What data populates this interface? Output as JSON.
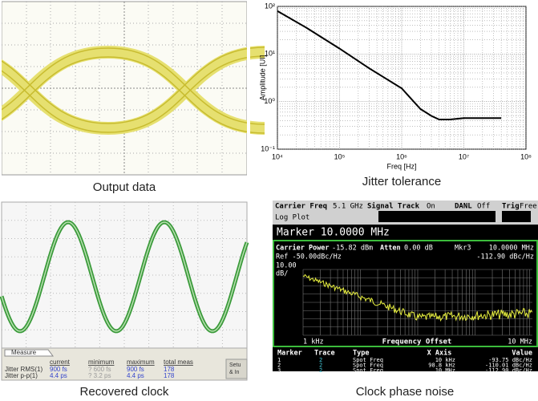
{
  "output_data": {
    "caption": "Output data"
  },
  "chart_data": [
    {
      "type": "line",
      "caption": "Jitter tolerance",
      "xlabel": "Freq [Hz]",
      "ylabel": "Amplitude [UI]",
      "log_x": true,
      "log_y": true,
      "grid": true,
      "color": "#000000",
      "x": [
        10000,
        30000,
        100000,
        300000,
        1000000,
        2000000,
        3000000,
        4000000,
        6000000,
        10000000,
        20000000,
        40000000
      ],
      "values": [
        80,
        35,
        13,
        5,
        1.9,
        0.7,
        0.5,
        0.42,
        0.42,
        0.45,
        0.45,
        0.45
      ],
      "xlim": [
        10000,
        100000000
      ],
      "xticks": [
        {
          "value": 10000,
          "label": "10⁴"
        },
        {
          "value": 100000,
          "label": "10⁵"
        },
        {
          "value": 1000000,
          "label": "10⁶"
        },
        {
          "value": 10000000,
          "label": "10⁷"
        },
        {
          "value": 100000000,
          "label": "10⁸"
        }
      ],
      "ylim": [
        0.1,
        100
      ],
      "yticks": [
        {
          "value": 0.1,
          "label": "10⁻¹"
        },
        {
          "value": 1,
          "label": "10⁰"
        },
        {
          "value": 10,
          "label": "10¹"
        },
        {
          "value": 100,
          "label": "10²"
        }
      ]
    }
  ],
  "recovered_clock": {
    "caption": "Recovered clock",
    "measure": {
      "tab": "Measure",
      "headers": [
        "current",
        "minimum",
        "maximum",
        "total meas"
      ],
      "rows": [
        [
          "Jitter RMS(1)",
          "900 fs",
          "? 600 fs",
          "900 fs",
          "178"
        ],
        [
          "Jitter p-p(1)",
          "4.4 ps",
          "? 3.2 ps",
          "4.4 ps",
          "178"
        ]
      ],
      "side": [
        "Setu",
        "& In"
      ]
    }
  },
  "phase_noise": {
    "caption": "Clock phase noise",
    "header": [
      "Carrier Freq",
      "5.1 GHz",
      "Signal Track",
      "On",
      "DANL",
      "Off",
      "Trig",
      "Free"
    ],
    "mode": "Log Plot",
    "marker_line": "Marker 10.0000 MHz",
    "status": [
      "Carrier Power",
      "-15.82 dBm",
      "Atten",
      "0.00 dB",
      "Mkr3",
      "10.0000 MHz"
    ],
    "ref": "Ref -50.00dBc/Hz",
    "marker_value": "-112.90 dBc/Hz",
    "scale": [
      "10.00",
      "dB/"
    ],
    "x_start": "1 kHz",
    "x_title": "Frequency Offset",
    "x_end": "10 MHz",
    "table": {
      "headers": [
        "Marker",
        "Trace",
        "Type",
        "X Axis",
        "Value"
      ],
      "rows": [
        [
          "1",
          "2",
          "Spot Freq",
          "10 kHz",
          "-93.75 dBc/Hz"
        ],
        [
          "2",
          "2",
          "Spot Freq",
          "98.8 kHz",
          "-110.01 dBc/Hz"
        ],
        [
          "3",
          "2",
          "Spot Freq",
          "10 MHz",
          "-112.90 dBc/Hz"
        ]
      ]
    }
  }
}
